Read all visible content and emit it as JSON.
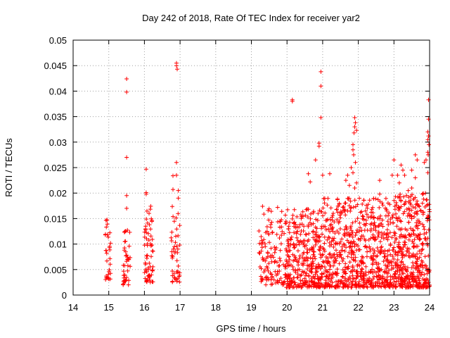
{
  "chart_data": {
    "type": "scatter",
    "title": "Day 242 of 2018, Rate Of TEC Index for receiver yar2",
    "xlabel": "GPS time / hours",
    "ylabel": "ROTI / TECUs",
    "xlim": [
      14,
      24
    ],
    "ylim": [
      0,
      0.05
    ],
    "xticks": [
      "14",
      "15",
      "16",
      "17",
      "18",
      "19",
      "20",
      "21",
      "22",
      "23",
      "24"
    ],
    "yticks": [
      "0",
      "0.005",
      "0.01",
      "0.015",
      "0.02",
      "0.025",
      "0.03",
      "0.035",
      "0.04",
      "0.045",
      "0.05"
    ],
    "grid": true,
    "marker": "+",
    "color": "#ff0000",
    "clusters": [
      {
        "x_start": 14.9,
        "x_end": 15.05,
        "y_min": 0.003,
        "y_max": 0.0148,
        "count": 30
      },
      {
        "x_start": 15.4,
        "x_end": 15.6,
        "y_min": 0.002,
        "y_max": 0.0148,
        "count": 40
      },
      {
        "x_start": 16.0,
        "x_end": 16.25,
        "y_min": 0.0025,
        "y_max": 0.0175,
        "count": 65
      },
      {
        "x_start": 16.75,
        "x_end": 17.0,
        "y_min": 0.0025,
        "y_max": 0.0175,
        "count": 45
      },
      {
        "x_start": 19.2,
        "x_end": 19.95,
        "y_min": 0.002,
        "y_max": 0.0175,
        "count": 120
      },
      {
        "x_start": 19.95,
        "x_end": 21.0,
        "y_min": 0.0015,
        "y_max": 0.017,
        "count": 340
      },
      {
        "x_start": 21.0,
        "x_end": 22.1,
        "y_min": 0.0015,
        "y_max": 0.019,
        "count": 360
      },
      {
        "x_start": 22.1,
        "x_end": 23.0,
        "y_min": 0.0015,
        "y_max": 0.019,
        "count": 300
      },
      {
        "x_start": 23.0,
        "x_end": 24.0,
        "y_min": 0.0015,
        "y_max": 0.02,
        "count": 420
      }
    ],
    "points": [
      [
        15.5,
        0.0424
      ],
      [
        15.5,
        0.0398
      ],
      [
        15.5,
        0.027
      ],
      [
        15.5,
        0.0195
      ],
      [
        15.5,
        0.017
      ],
      [
        16.05,
        0.0247
      ],
      [
        16.05,
        0.0201
      ],
      [
        16.05,
        0.0198
      ],
      [
        16.9,
        0.0455
      ],
      [
        16.9,
        0.045
      ],
      [
        16.92,
        0.0443
      ],
      [
        16.9,
        0.026
      ],
      [
        16.9,
        0.0235
      ],
      [
        16.8,
        0.0234
      ],
      [
        16.95,
        0.0205
      ],
      [
        16.8,
        0.0207
      ],
      [
        16.95,
        0.019
      ],
      [
        20.15,
        0.0383
      ],
      [
        20.15,
        0.038
      ],
      [
        20.95,
        0.0438
      ],
      [
        20.95,
        0.041
      ],
      [
        20.95,
        0.0348
      ],
      [
        20.9,
        0.0298
      ],
      [
        20.9,
        0.0292
      ],
      [
        20.8,
        0.0265
      ],
      [
        20.6,
        0.0238
      ],
      [
        20.65,
        0.0222
      ],
      [
        21.2,
        0.0238
      ],
      [
        21.0,
        0.0235
      ],
      [
        21.9,
        0.0348
      ],
      [
        21.92,
        0.0338
      ],
      [
        21.9,
        0.033
      ],
      [
        21.95,
        0.0323
      ],
      [
        21.88,
        0.0318
      ],
      [
        21.85,
        0.0295
      ],
      [
        21.85,
        0.0285
      ],
      [
        21.87,
        0.0275
      ],
      [
        21.92,
        0.026
      ],
      [
        21.8,
        0.025
      ],
      [
        21.85,
        0.024
      ],
      [
        21.7,
        0.0235
      ],
      [
        21.65,
        0.0225
      ],
      [
        21.75,
        0.0215
      ],
      [
        21.9,
        0.021
      ],
      [
        21.95,
        0.022
      ],
      [
        22.6,
        0.0225
      ],
      [
        22.6,
        0.0198
      ],
      [
        22.95,
        0.0235
      ],
      [
        23.0,
        0.0265
      ],
      [
        23.1,
        0.0235
      ],
      [
        23.2,
        0.0255
      ],
      [
        23.25,
        0.0245
      ],
      [
        23.3,
        0.0235
      ],
      [
        23.15,
        0.022
      ],
      [
        23.5,
        0.0245
      ],
      [
        23.6,
        0.0275
      ],
      [
        23.65,
        0.0265
      ],
      [
        23.6,
        0.023
      ],
      [
        23.9,
        0.0265
      ],
      [
        23.85,
        0.026
      ],
      [
        23.95,
        0.024
      ],
      [
        23.97,
        0.0383
      ],
      [
        23.97,
        0.0345
      ],
      [
        23.95,
        0.032
      ],
      [
        23.97,
        0.0312
      ],
      [
        23.95,
        0.0305
      ],
      [
        23.98,
        0.0295
      ],
      [
        23.95,
        0.028
      ],
      [
        23.96,
        0.0275
      ],
      [
        23.5,
        0.021
      ],
      [
        23.4,
        0.0205
      ]
    ]
  }
}
